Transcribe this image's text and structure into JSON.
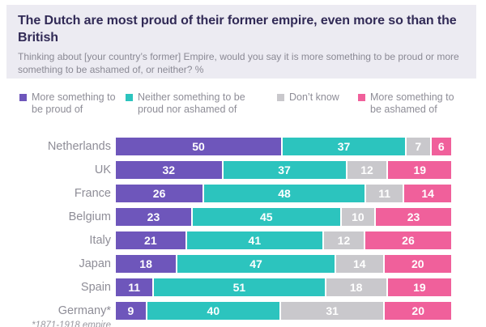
{
  "header": {
    "title": "The Dutch are most proud of their former empire, even more so than the British",
    "subtitle": "Thinking about [your country’s former] Empire, would you say it is more something to be proud or more something to be ashamed of, or neither? %"
  },
  "legend": {
    "items": [
      {
        "key": "proud",
        "lines": [
          "More something to",
          "be proud of"
        ]
      },
      {
        "key": "neither",
        "lines": [
          "Neither something to be",
          "proud nor ashamed of"
        ]
      },
      {
        "key": "dont-know",
        "lines": [
          "Don’t know"
        ]
      },
      {
        "key": "ashamed",
        "lines": [
          "More something to",
          "be ashamed of"
        ]
      }
    ]
  },
  "chart_data": {
    "type": "bar",
    "stacked": true,
    "orientation": "horizontal",
    "unit": "%",
    "x_range": [
      0,
      100
    ],
    "grid": false,
    "legend_position": "top",
    "categories": [
      "Netherlands",
      "UK",
      "France",
      "Belgium",
      "Italy",
      "Japan",
      "Spain",
      "Germany*"
    ],
    "series": [
      {
        "key": "proud",
        "name": "More something to be proud of",
        "color": "#6E56BB",
        "values": [
          50,
          32,
          26,
          23,
          21,
          18,
          11,
          9
        ]
      },
      {
        "key": "neither",
        "name": "Neither something to be proud nor ashamed of",
        "color": "#2CC4BE",
        "values": [
          37,
          37,
          48,
          45,
          41,
          47,
          51,
          40
        ]
      },
      {
        "key": "dont-know",
        "name": "Don’t know",
        "color": "#C9C8CC",
        "values": [
          7,
          12,
          11,
          10,
          12,
          14,
          18,
          31
        ]
      },
      {
        "key": "ashamed",
        "name": "More something to be ashamed of",
        "color": "#F0609B",
        "values": [
          6,
          19,
          14,
          23,
          26,
          20,
          19,
          20
        ]
      }
    ],
    "footnote": "*1871-1918 empire"
  },
  "colors": {
    "title": "#312A56",
    "muted_text": "#8E8D97",
    "header_bg": "#ECEBF2",
    "value_label": "#FFFFFF"
  }
}
